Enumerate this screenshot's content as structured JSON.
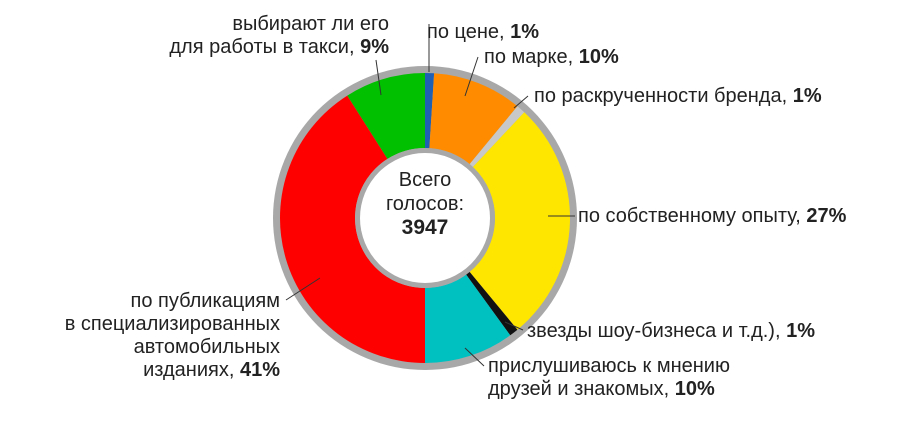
{
  "chart_data": {
    "type": "pie",
    "variant": "donut",
    "center_label": {
      "line1": "Всего",
      "line2": "голосов:",
      "total": "3947"
    },
    "slices": [
      {
        "label_lines": [
          "по цене,"
        ],
        "value_text": "1%",
        "value": 1,
        "color": "#1f5fb4"
      },
      {
        "label_lines": [
          "по марке,"
        ],
        "value_text": "10%",
        "value": 10,
        "color": "#ff8c00"
      },
      {
        "label_lines": [
          "по раскрученности бренда,"
        ],
        "value_text": "1%",
        "value": 1,
        "color": "#c8c8c8"
      },
      {
        "label_lines": [
          "по собственному опыту,"
        ],
        "value_text": "27%",
        "value": 27,
        "color": "#ffe600"
      },
      {
        "label_lines": [
          "звезды шоу-бизнеса и т.д.),"
        ],
        "value_text": "1%",
        "value": 1,
        "color": "#111111"
      },
      {
        "label_lines": [
          "прислушиваюсь к мнению",
          "друзей и знакомых,"
        ],
        "value_text": "10%",
        "value": 10,
        "color": "#00c0c0"
      },
      {
        "label_lines": [
          "по публикациям",
          "в специализированных",
          "автомобильных",
          "изданиях,"
        ],
        "value_text": "41%",
        "value": 41,
        "color": "#ff0000"
      },
      {
        "label_lines": [
          "выбирают ли его",
          "для работы в такси,"
        ],
        "value_text": "9%",
        "value": 9,
        "color": "#00c000"
      }
    ]
  }
}
